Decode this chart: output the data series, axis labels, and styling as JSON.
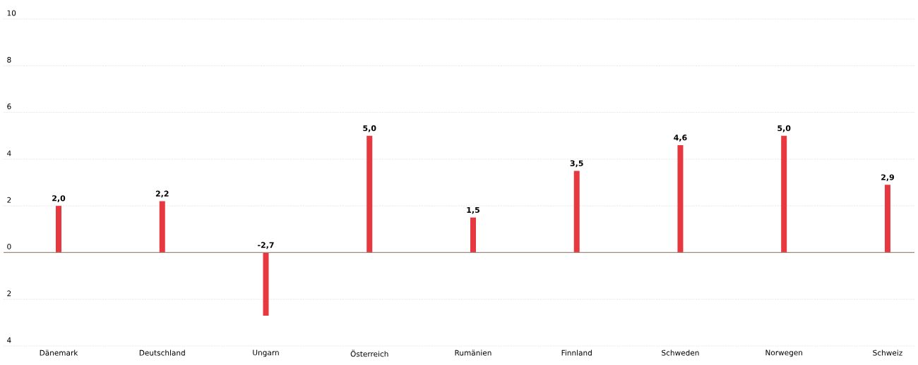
{
  "chart_data": {
    "type": "bar",
    "categories": [
      "Dänemark",
      "Deutschland",
      "Ungarn",
      "Österreich",
      "Rumänien",
      "Finnland",
      "Schweden",
      "Norwegen",
      "Schweiz"
    ],
    "values": [
      2.0,
      2.2,
      -2.7,
      5.0,
      1.5,
      3.5,
      4.6,
      5.0,
      2.9
    ],
    "value_labels": [
      "2,0",
      "2,2",
      "-2,7",
      "5,0",
      "1,5",
      "3,5",
      "4,6",
      "5,0",
      "2,9"
    ],
    "color": "#e8383f",
    "ylim": [
      -4,
      10
    ],
    "yticks": [
      {
        "value": -4,
        "label": "4"
      },
      {
        "value": -2,
        "label": "2"
      },
      0,
      2,
      4,
      6,
      8,
      10
    ],
    "grid": "y"
  }
}
